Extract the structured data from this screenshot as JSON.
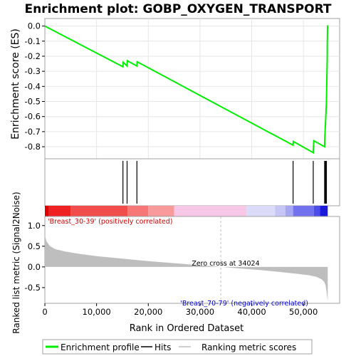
{
  "chart_data": {
    "type": "line",
    "title": "Enrichment plot: GOBP_OXYGEN_TRANSPORT",
    "colors": {
      "es_line": "#00ee00",
      "hits": "#000000",
      "ranking_fill": "#bebebe",
      "pos_label": "#cc0000",
      "neg_label": "#0000cc",
      "zero_cross_line": "#bebebe",
      "frame": "#a0a0a0"
    },
    "top_panel": {
      "ylabel": "Enrichment score (ES)",
      "ylim": [
        -0.88,
        0.05
      ],
      "y_ticks": [
        0.0,
        -0.1,
        -0.2,
        -0.3,
        -0.4,
        -0.5,
        -0.6,
        -0.7,
        -0.8
      ],
      "y_tick_labels": [
        "0.0",
        "-0.1",
        "-0.2",
        "-0.3",
        "-0.4",
        "-0.5",
        "-0.6",
        "-0.7",
        "-0.8"
      ],
      "grid": true,
      "es_profile": {
        "x": [
          0,
          15100,
          15150,
          15900,
          15950,
          17800,
          17850,
          48000,
          48050,
          51900,
          51950,
          52000,
          54100,
          54150,
          54250,
          54350,
          54450,
          54500,
          54550,
          54600,
          54620,
          54640,
          54660,
          54680,
          54700
        ],
        "y": [
          0.0,
          -0.27,
          -0.24,
          -0.265,
          -0.23,
          -0.265,
          -0.237,
          -0.79,
          -0.765,
          -0.84,
          -0.8,
          -0.76,
          -0.8,
          -0.73,
          -0.66,
          -0.58,
          -0.5,
          -0.41,
          -0.31,
          -0.22,
          -0.11,
          -0.06,
          -0.02,
          0.0,
          0.005
        ]
      }
    },
    "hits": [
      15100,
      15900,
      17800,
      48000,
      51900,
      54100,
      54250,
      54350,
      54450
    ],
    "heatmap": {
      "segments": [
        {
          "x0": 0,
          "x1": 800,
          "color": "#e00000"
        },
        {
          "x0": 800,
          "x1": 5000,
          "color": "#ee2222"
        },
        {
          "x0": 5000,
          "x1": 16000,
          "color": "#f24d4d"
        },
        {
          "x0": 16000,
          "x1": 20000,
          "color": "#f77777"
        },
        {
          "x0": 20000,
          "x1": 25000,
          "color": "#f99a9a"
        },
        {
          "x0": 25000,
          "x1": 39000,
          "color": "#f8c6e6"
        },
        {
          "x0": 39000,
          "x1": 44500,
          "color": "#dcdcf8"
        },
        {
          "x0": 44500,
          "x1": 46500,
          "color": "#c6c6f6"
        },
        {
          "x0": 46500,
          "x1": 48000,
          "color": "#a6a6f2"
        },
        {
          "x0": 48000,
          "x1": 52000,
          "color": "#7272ee"
        },
        {
          "x0": 52000,
          "x1": 53200,
          "color": "#4c4cea"
        },
        {
          "x0": 53200,
          "x1": 54700,
          "color": "#1a1ad8"
        }
      ]
    },
    "bottom_panel": {
      "ylabel": "Ranked list metric (Signal2Noise)",
      "xlabel": "Rank in Ordered Dataset",
      "xlim": [
        0,
        57000
      ],
      "ylim": [
        -0.88,
        1.22
      ],
      "x_ticks": [
        0,
        10000,
        20000,
        30000,
        40000,
        50000
      ],
      "x_tick_labels": [
        "0",
        "10,000",
        "20,000",
        "30,000",
        "40,000",
        "50,000"
      ],
      "y_ticks": [
        1.0,
        0.5,
        0.0,
        -0.5
      ],
      "y_tick_labels": [
        "1.0",
        "0.5",
        "0.0",
        "-0.5"
      ],
      "ranking_metric": {
        "x": [
          0,
          300,
          1000,
          2000,
          4000,
          7000,
          10000,
          15000,
          20000,
          25000,
          30000,
          34024,
          38000,
          42000,
          46000,
          49000,
          51000,
          52500,
          53500,
          54000,
          54300,
          54500,
          54700
        ],
        "y": [
          0.78,
          0.62,
          0.5,
          0.43,
          0.37,
          0.31,
          0.26,
          0.2,
          0.14,
          0.09,
          0.04,
          0.0,
          -0.04,
          -0.08,
          -0.13,
          -0.17,
          -0.2,
          -0.24,
          -0.3,
          -0.36,
          -0.45,
          -0.62,
          -0.82
        ]
      },
      "zero_cross_x": 34024,
      "zero_cross_label": "Zero cross at 34024",
      "pos_label": "'Breast_30-39' (positively correlated)",
      "neg_label": "'Breast_70-79' (negatively correlated)"
    },
    "legend": {
      "placement": "bottom",
      "items": [
        {
          "label": "Enrichment profile",
          "color": "#00ee00",
          "style": "thick"
        },
        {
          "label": "Hits",
          "color": "#000000",
          "style": "thin"
        },
        {
          "label": "Ranking metric scores",
          "color": "#bebebe",
          "style": "thin"
        }
      ]
    }
  }
}
